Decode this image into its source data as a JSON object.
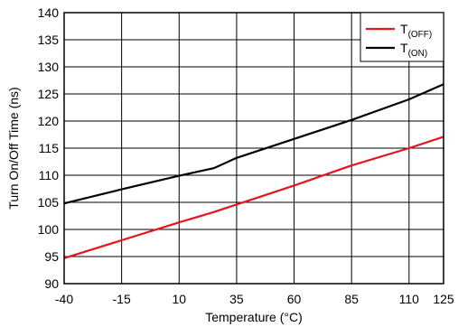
{
  "chart_data": {
    "type": "line",
    "xlabel": "Temperature (°C)",
    "ylabel": "Turn On/Off Time (ns)",
    "xlim": [
      -40,
      125
    ],
    "ylim": [
      90,
      140
    ],
    "x_ticks": [
      -40,
      -15,
      10,
      35,
      60,
      85,
      110,
      125
    ],
    "y_ticks": [
      90,
      95,
      100,
      105,
      110,
      115,
      120,
      125,
      130,
      135,
      140
    ],
    "grid": true,
    "legend_position": "top-right",
    "series": [
      {
        "name": "T(OFF)",
        "name_main": "T",
        "name_sub": "(OFF)",
        "color": "#e8141c",
        "x": [
          -40,
          -15,
          10,
          25,
          35,
          60,
          85,
          110,
          125
        ],
        "y": [
          94.7,
          98.0,
          101.3,
          103.2,
          104.6,
          108.1,
          111.8,
          115.0,
          117.1
        ]
      },
      {
        "name": "T(ON)",
        "name_main": "T",
        "name_sub": "(ON)",
        "color": "#000000",
        "x": [
          -40,
          -15,
          10,
          25,
          35,
          60,
          85,
          110,
          125
        ],
        "y": [
          104.8,
          107.4,
          109.9,
          111.3,
          113.2,
          116.7,
          120.2,
          124.0,
          126.8
        ]
      }
    ]
  }
}
